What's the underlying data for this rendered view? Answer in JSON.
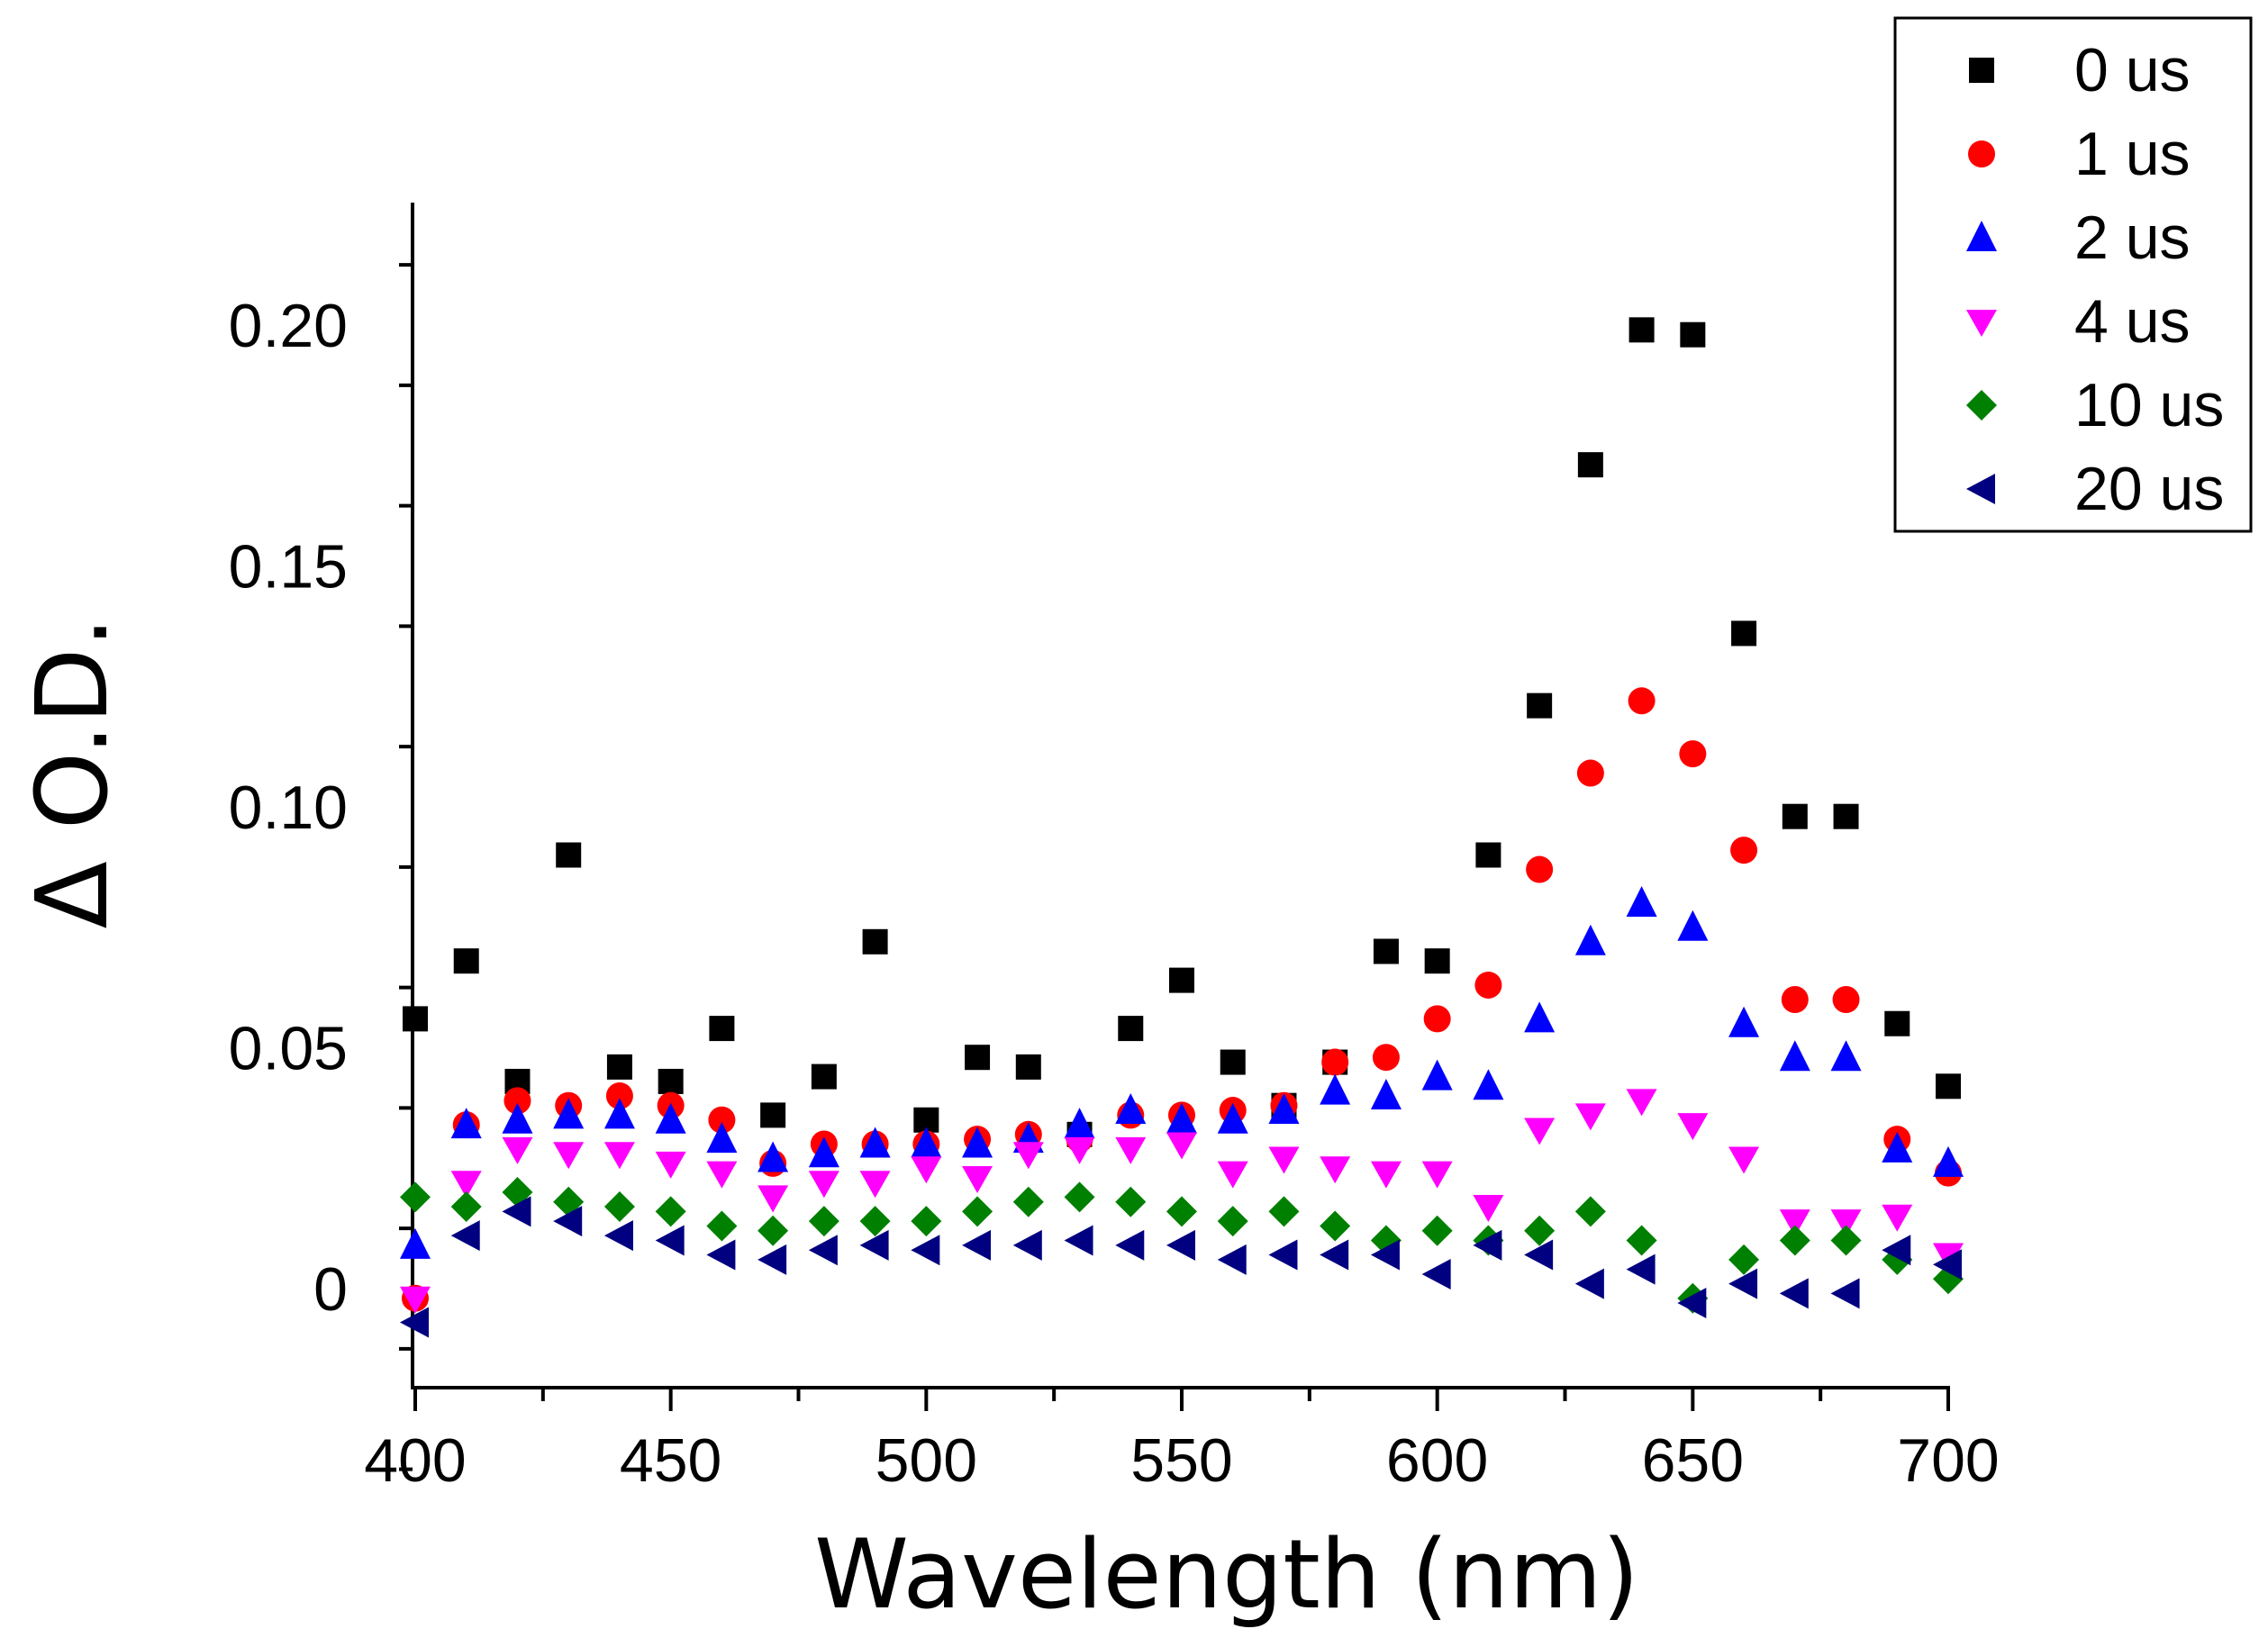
{
  "chart_data": {
    "type": "scatter",
    "title": "",
    "xlabel": "Wavelength (nm)",
    "ylabel": "Δ O.D.",
    "xlim": [
      400,
      700
    ],
    "ylim": [
      -0.02,
      0.225
    ],
    "xticks": [
      400,
      450,
      500,
      550,
      600,
      650,
      700
    ],
    "xtick_labels": [
      "400",
      "450",
      "500",
      "550",
      "600",
      "650",
      "700"
    ],
    "yticks": [
      0,
      0.05,
      0.1,
      0.15,
      0.2
    ],
    "ytick_labels": [
      "0",
      "0.05",
      "0.10",
      "0.15",
      "0.20"
    ],
    "legend_position": "top-right",
    "x": [
      400,
      410,
      420,
      430,
      440,
      450,
      460,
      470,
      480,
      490,
      500,
      510,
      520,
      530,
      540,
      550,
      560,
      570,
      580,
      590,
      600,
      610,
      620,
      630,
      640,
      650,
      660,
      670,
      680,
      690,
      700
    ],
    "series": [
      {
        "name": "0 us",
        "marker": "square",
        "color": "#000000",
        "values": [
          0.056,
          0.068,
          0.043,
          0.09,
          0.046,
          0.043,
          0.054,
          0.036,
          0.044,
          0.072,
          0.035,
          0.048,
          0.046,
          0.032,
          0.054,
          0.064,
          0.047,
          0.038,
          0.047,
          0.07,
          0.068,
          0.09,
          0.121,
          0.171,
          0.199,
          0.198,
          0.136,
          0.098,
          0.098,
          0.055,
          0.042
        ]
      },
      {
        "name": "1 us",
        "marker": "circle",
        "color": "#ff0000",
        "values": [
          -0.002,
          0.034,
          0.039,
          0.038,
          0.04,
          0.038,
          0.035,
          0.026,
          0.03,
          0.03,
          0.03,
          0.031,
          0.032,
          0.031,
          0.036,
          0.036,
          0.037,
          0.038,
          0.047,
          0.048,
          0.056,
          0.063,
          0.087,
          0.107,
          0.122,
          0.111,
          0.091,
          0.06,
          0.06,
          0.031,
          0.024
        ]
      },
      {
        "name": "2 us",
        "marker": "triangle-up",
        "color": "#0000ff",
        "values": [
          0.009,
          0.034,
          0.035,
          0.036,
          0.036,
          0.035,
          0.031,
          0.027,
          0.028,
          0.03,
          0.03,
          0.03,
          0.031,
          0.034,
          0.037,
          0.035,
          0.035,
          0.037,
          0.041,
          0.04,
          0.044,
          0.042,
          0.056,
          0.072,
          0.08,
          0.075,
          0.055,
          0.048,
          0.048,
          0.029,
          0.026
        ]
      },
      {
        "name": "4 us",
        "marker": "triangle-down",
        "color": "#ff00ff",
        "values": [
          -0.002,
          0.022,
          0.029,
          0.028,
          0.028,
          0.026,
          0.024,
          0.019,
          0.022,
          0.022,
          0.025,
          0.023,
          0.028,
          0.029,
          0.029,
          0.03,
          0.024,
          0.027,
          0.025,
          0.024,
          0.024,
          0.017,
          0.033,
          0.036,
          0.039,
          0.034,
          0.027,
          0.014,
          0.014,
          0.015,
          0.007
        ]
      },
      {
        "name": "10 us",
        "marker": "diamond",
        "color": "#008000",
        "values": [
          0.019,
          0.017,
          0.02,
          0.018,
          0.017,
          0.016,
          0.013,
          0.012,
          0.014,
          0.014,
          0.014,
          0.016,
          0.018,
          0.019,
          0.018,
          0.016,
          0.014,
          0.016,
          0.013,
          0.01,
          0.012,
          0.01,
          0.012,
          0.016,
          0.01,
          -0.002,
          0.006,
          0.01,
          0.01,
          0.006,
          0.002
        ]
      },
      {
        "name": "20 us",
        "marker": "triangle-left",
        "color": "#000080",
        "values": [
          -0.007,
          0.011,
          0.016,
          0.014,
          0.011,
          0.01,
          0.007,
          0.006,
          0.008,
          0.009,
          0.008,
          0.009,
          0.009,
          0.01,
          0.009,
          0.009,
          0.006,
          0.007,
          0.007,
          0.007,
          0.003,
          0.009,
          0.007,
          0.001,
          0.004,
          -0.003,
          0.001,
          -0.001,
          -0.001,
          0.008,
          0.005
        ]
      }
    ]
  }
}
